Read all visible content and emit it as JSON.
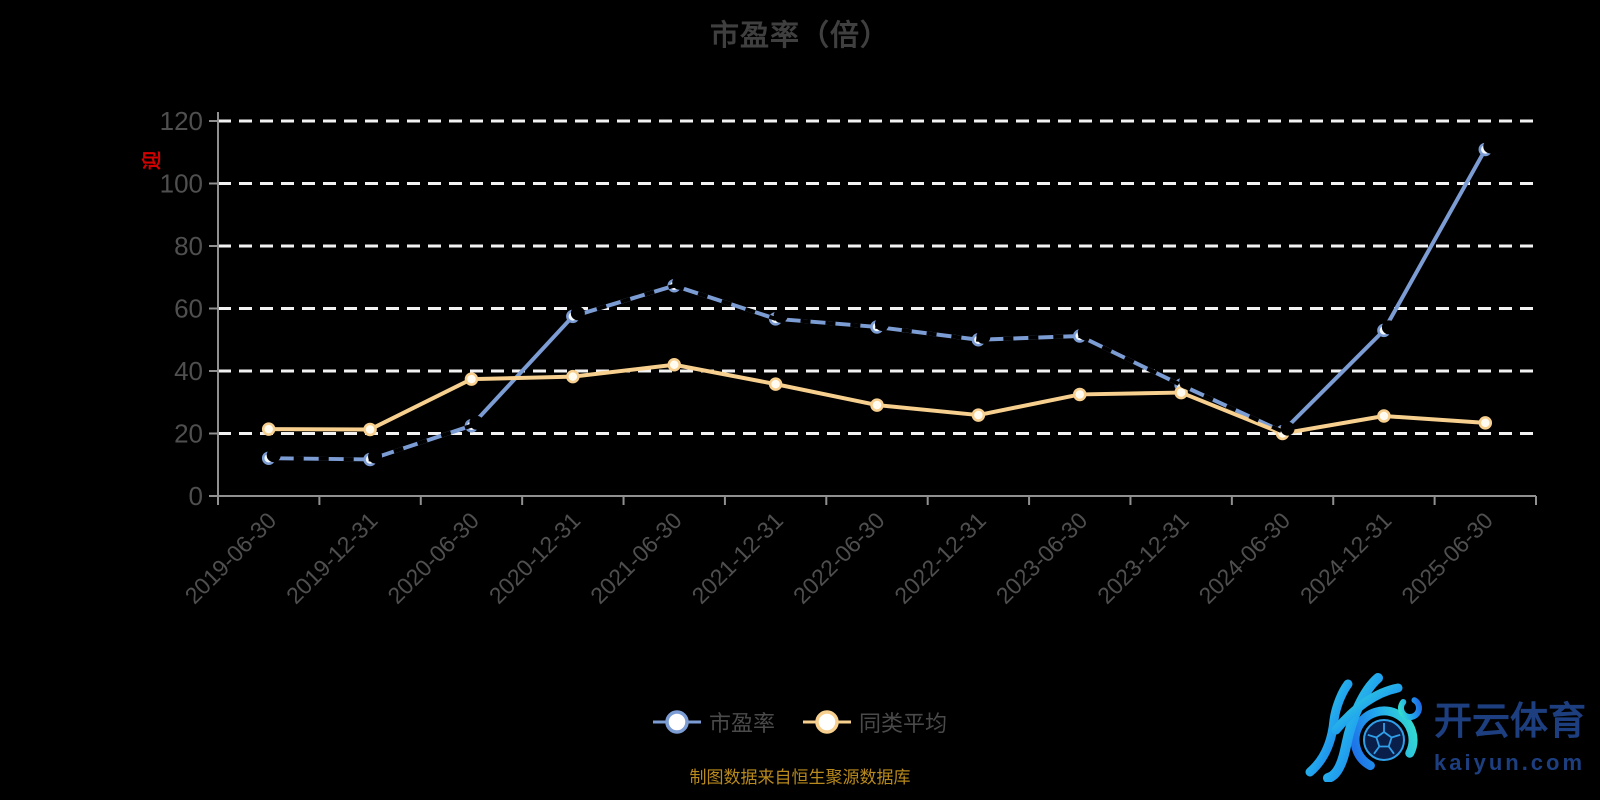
{
  "title": {
    "text": "市盈率（倍）"
  },
  "y_axis_red_label": {
    "text": "迎",
    "color": "#d40000"
  },
  "chart_data": {
    "type": "line",
    "title": "市盈率（倍）",
    "categories": [
      "2019-06-30",
      "2019-12-31",
      "2020-06-30",
      "2020-12-31",
      "2021-06-30",
      "2021-12-31",
      "2022-06-30",
      "2022-12-31",
      "2023-06-30",
      "2023-12-31",
      "2024-06-30",
      "2024-12-31",
      "2025-06-30"
    ],
    "series": [
      {
        "name": "市盈率",
        "color": "#7c9cd4",
        "marker_fill": "#f4f8ff",
        "values": [
          12.1,
          11.7,
          22.5,
          57.5,
          67.3,
          56.7,
          54.1,
          50.0,
          51.2,
          35.5,
          20.6,
          53.0,
          110.9
        ]
      },
      {
        "name": "同类平均",
        "color": "#f7cf8e",
        "marker_fill": "#fffbf0",
        "values": [
          21.4,
          21.3,
          37.4,
          38.2,
          42.0,
          35.8,
          29.1,
          25.9,
          32.5,
          33.1,
          20.0,
          25.6,
          23.4
        ]
      }
    ],
    "ylim": [
      0,
      120
    ],
    "ytick_step": 20,
    "grid": {
      "show": true,
      "color": "#f2f2f2",
      "style": "dashed"
    },
    "axis_color": "#909090",
    "tick_label_color": "#4f4f4f",
    "legend_position": "bottom",
    "overlay_artifact": {
      "follows_series": "市盈率",
      "color": "#000000",
      "style": "dashed",
      "dash": [
        10,
        15
      ],
      "max_delta_for_dash": 20,
      "marker_offset": [
        5,
        -3
      ]
    }
  },
  "legend": {
    "items": [
      {
        "label": "市盈率",
        "color": "#7c9cd4"
      },
      {
        "label": "同类平均",
        "color": "#f7cf8e"
      }
    ]
  },
  "source_note": {
    "text": "制图数据来自恒生聚源数据库"
  },
  "watermark": {
    "brand_name": "开云体育",
    "brand_domain": "kaiyun.com",
    "text_color": "#1d3f80",
    "logo_gradient": [
      "#38e5c9",
      "#22a7ee",
      "#1d63e6"
    ]
  }
}
